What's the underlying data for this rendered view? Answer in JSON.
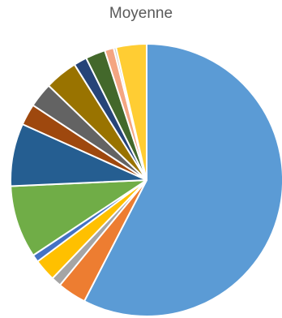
{
  "chart_data": {
    "type": "pie",
    "title": "Moyenne",
    "legend": "none",
    "slices": [
      {
        "value": 58.9,
        "color": "#5B9BD5"
      },
      {
        "value": 3.5,
        "color": "#ED7D31"
      },
      {
        "value": 1.2,
        "color": "#A5A5A5"
      },
      {
        "value": 2.7,
        "color": "#FFC000"
      },
      {
        "value": 0.9,
        "color": "#4472C4"
      },
      {
        "value": 8.8,
        "color": "#70AD47"
      },
      {
        "value": 7.6,
        "color": "#255E91"
      },
      {
        "value": 2.6,
        "color": "#9E480E"
      },
      {
        "value": 3.0,
        "color": "#636363"
      },
      {
        "value": 4.0,
        "color": "#997300"
      },
      {
        "value": 1.6,
        "color": "#264478"
      },
      {
        "value": 2.4,
        "color": "#43682B"
      },
      {
        "value": 1.1,
        "color": "#F4A582"
      },
      {
        "value": 0.3,
        "color": "#C9C9C9"
      },
      {
        "value": 3.7,
        "color": "#FFCD33"
      }
    ]
  }
}
